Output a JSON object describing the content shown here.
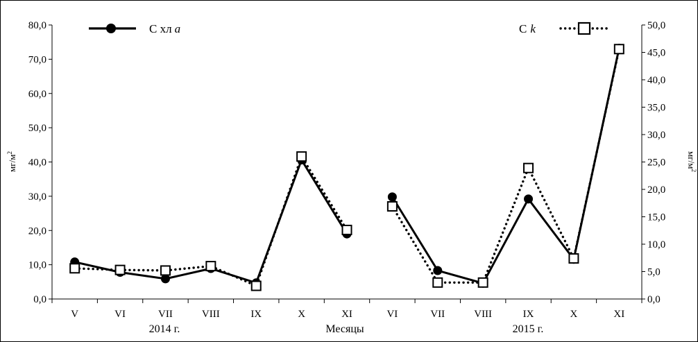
{
  "chart_data": {
    "type": "line",
    "xlabel": "Месяцы",
    "group_labels": [
      "2014 г.",
      "2015 г."
    ],
    "categories": [
      "V",
      "VI",
      "VII",
      "VIII",
      "IX",
      "X",
      "XI",
      "VI",
      "VII",
      "VIII",
      "IX",
      "X",
      "XI"
    ],
    "y_left": {
      "label": "мг/м",
      "label_sup": "2",
      "range": [
        0,
        80
      ],
      "ticks": [
        "0,0",
        "10,0",
        "20,0",
        "30,0",
        "40,0",
        "50,0",
        "60,0",
        "70,0",
        "80,0"
      ]
    },
    "y_right": {
      "label": "мг/м",
      "label_sup": "2",
      "range": [
        0,
        50
      ],
      "ticks": [
        "0,0",
        "5,0",
        "10,0",
        "15,0",
        "20,0",
        "25,0",
        "30,0",
        "35,0",
        "40,0",
        "45,0",
        "50,0"
      ]
    },
    "series": [
      {
        "name": "С хл",
        "name_italic": "a",
        "axis": "left",
        "style": "solid",
        "marker": "circle",
        "values": [
          10.8,
          7.8,
          5.9,
          8.9,
          4.7,
          40.6,
          19.0,
          29.8,
          8.3,
          4.6,
          29.2,
          11.6,
          73.2
        ]
      },
      {
        "name": "С",
        "name_italic": "k",
        "axis": "right",
        "style": "dotted",
        "marker": "square",
        "values": [
          5.6,
          5.3,
          5.2,
          6.0,
          2.4,
          26.0,
          12.6,
          16.9,
          3.0,
          3.0,
          23.9,
          7.4,
          45.6
        ]
      }
    ],
    "segments": [
      [
        0,
        6
      ],
      [
        7,
        12
      ]
    ],
    "grid": false,
    "legend": [
      "top-left",
      "top-right"
    ]
  }
}
